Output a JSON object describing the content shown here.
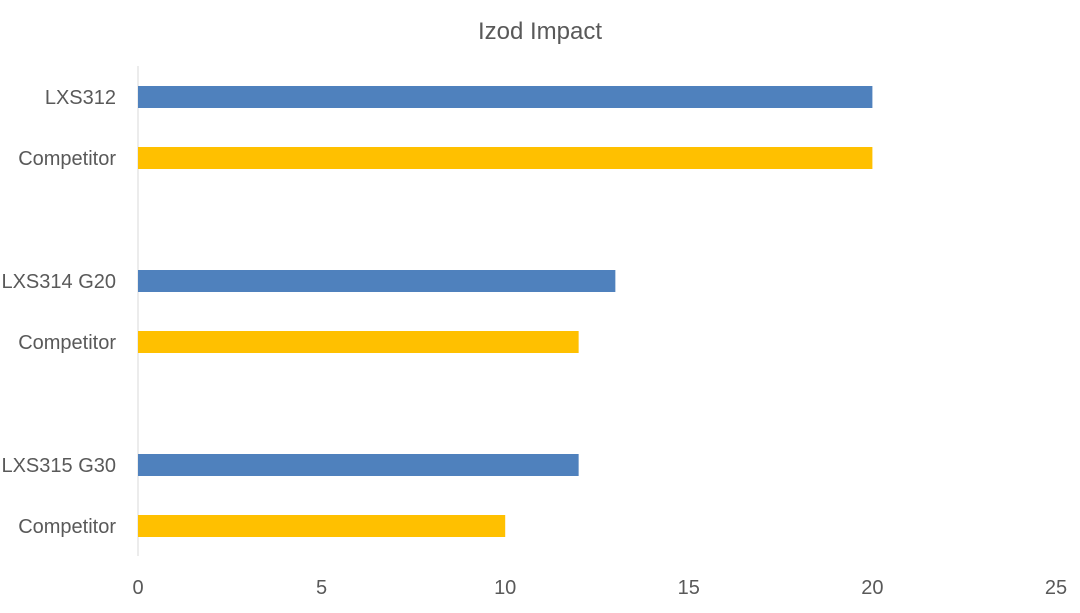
{
  "chart_data": {
    "type": "bar",
    "orientation": "horizontal",
    "title": "Izod Impact",
    "xlabel": "",
    "ylabel": "",
    "xlim": [
      0,
      25
    ],
    "x_ticks": [
      0,
      5,
      10,
      15,
      20,
      25
    ],
    "grid": false,
    "legend": "none",
    "categories": [
      "LXS312",
      "Competitor",
      "LXS314 G20",
      "Competitor",
      "LXS315 G30",
      "Competitor"
    ],
    "values": [
      20,
      20,
      13,
      12,
      12,
      10
    ],
    "groups": [
      {
        "items": [
          0,
          1
        ]
      },
      {
        "items": [
          2,
          3
        ]
      },
      {
        "items": [
          4,
          5
        ]
      }
    ],
    "colors": {
      "product": "#4F81BD",
      "competitor": "#FFC000",
      "axis": "#D9D9D9",
      "text": "#595959"
    },
    "bar_colors": [
      "#4F81BD",
      "#FFC000",
      "#4F81BD",
      "#FFC000",
      "#4F81BD",
      "#FFC000"
    ]
  }
}
